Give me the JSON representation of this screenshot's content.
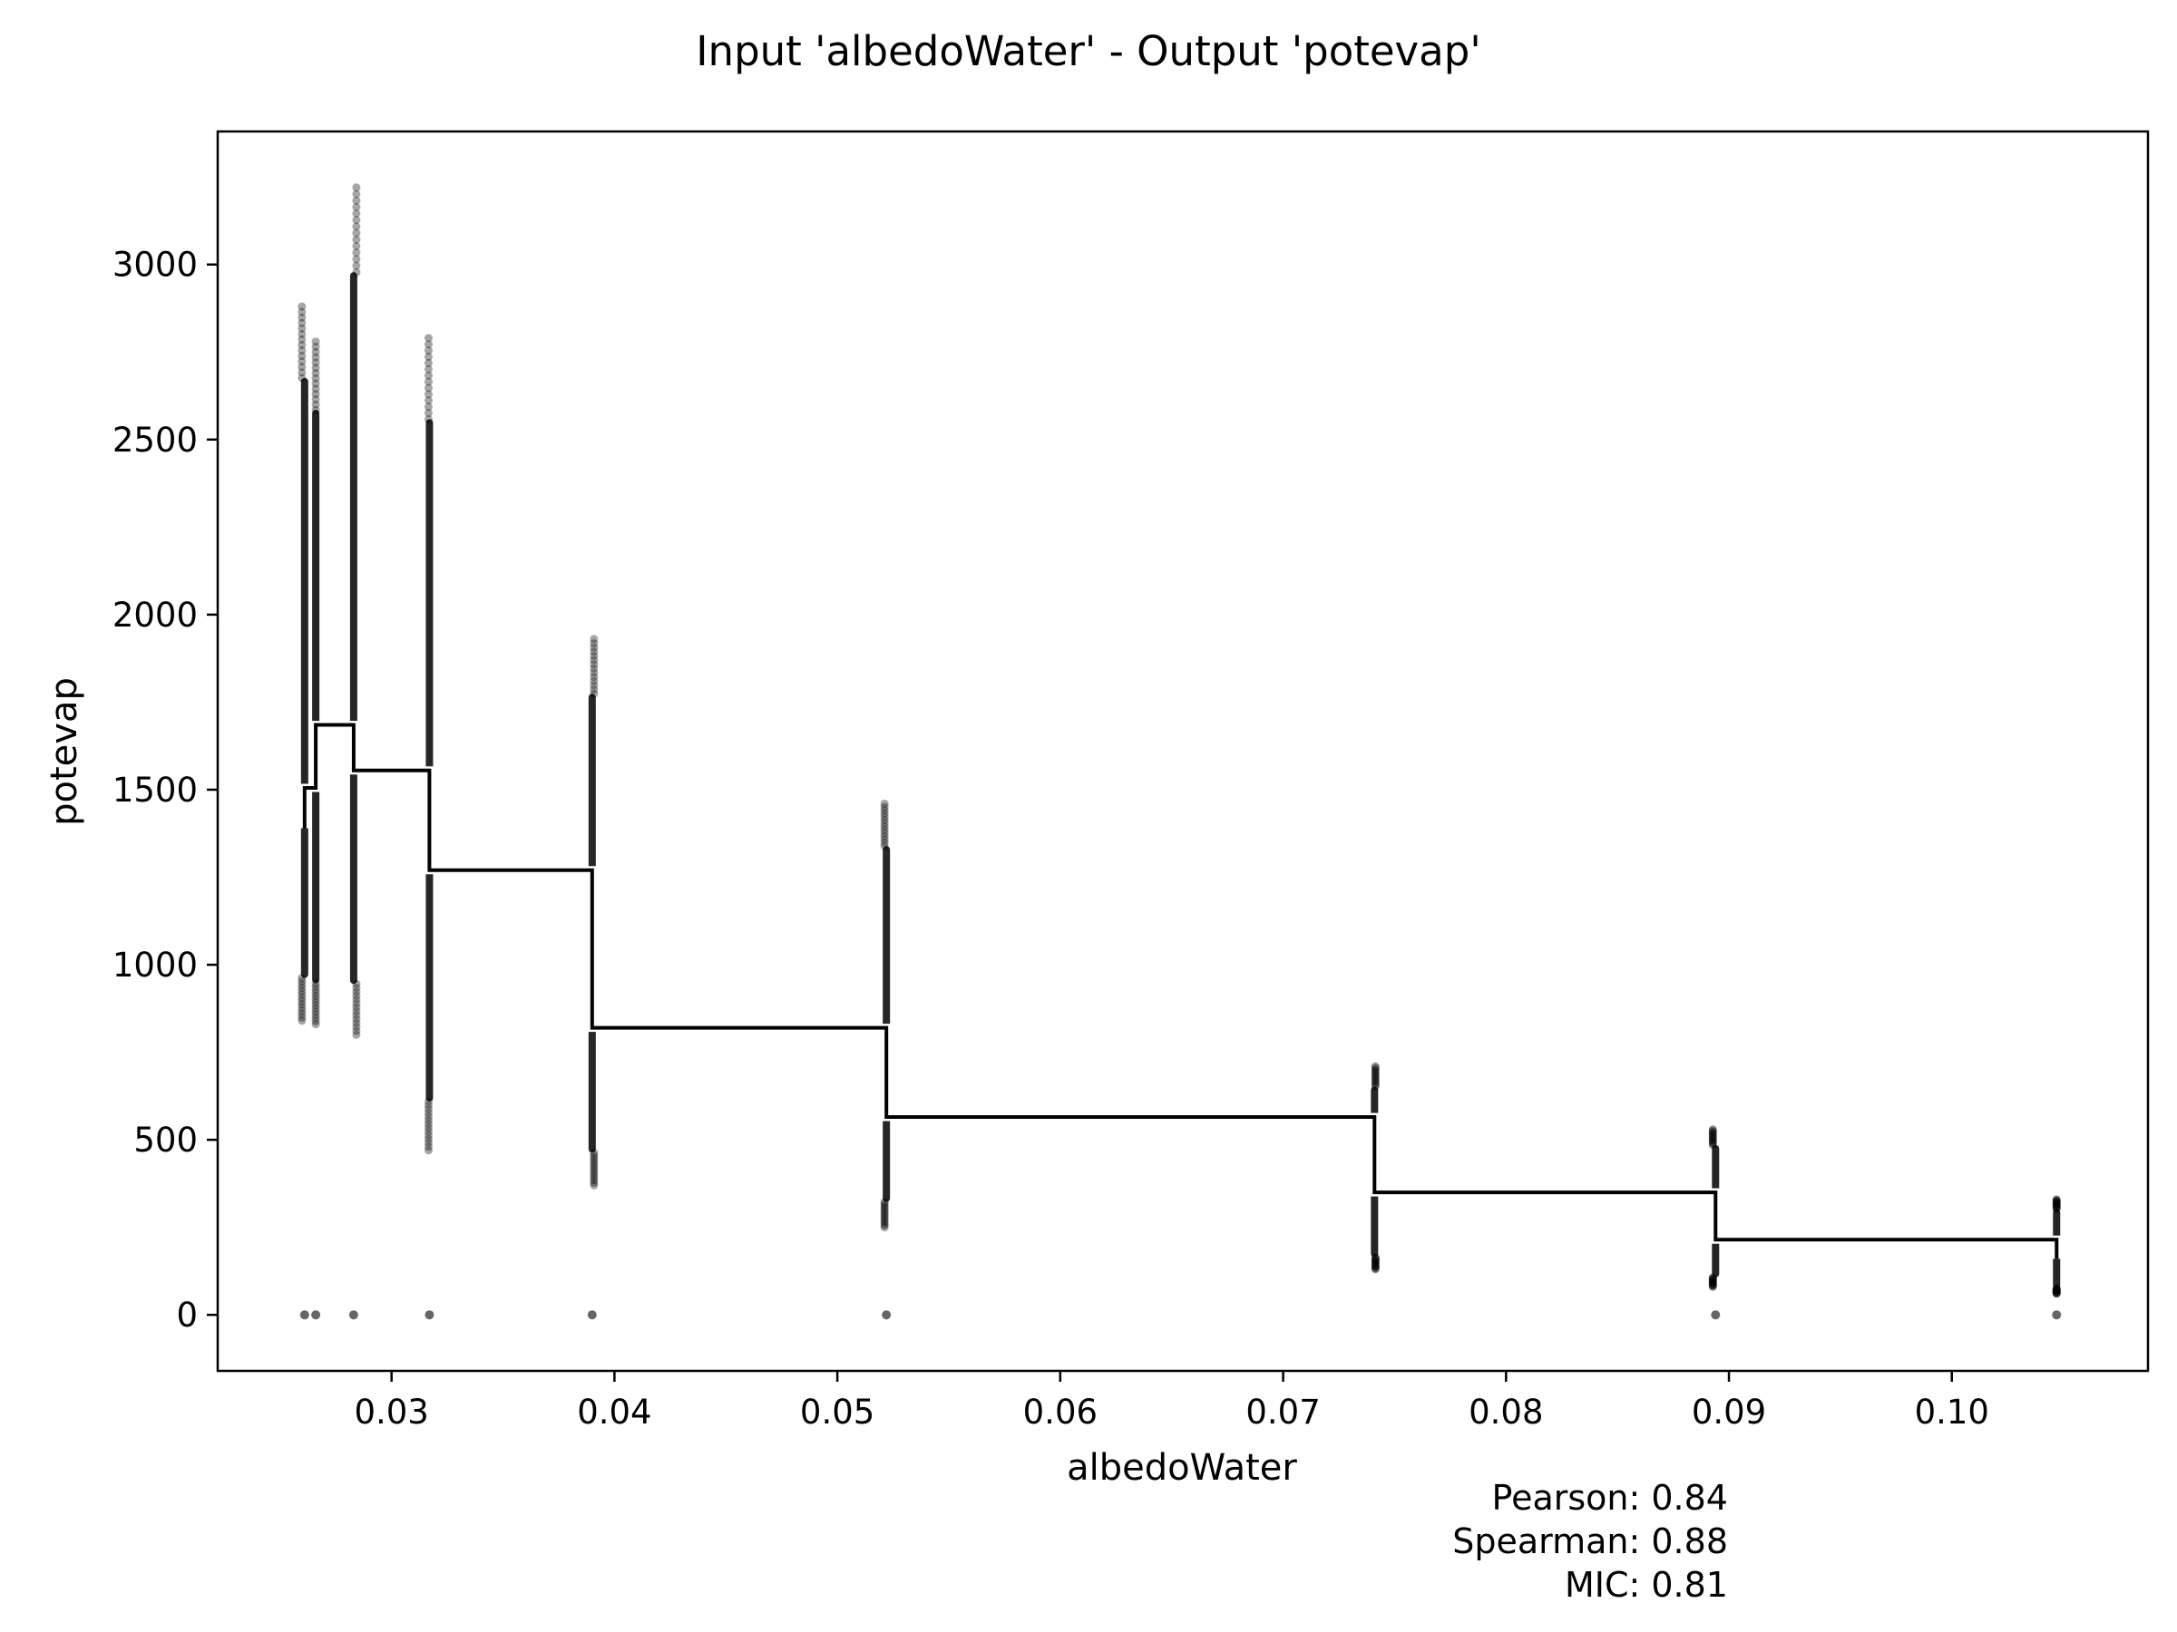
{
  "chart_data": {
    "type": "scatter",
    "title": "Input 'albedoWater' - Output 'potevap'",
    "xlabel": "albedoWater",
    "ylabel": "potevap",
    "xlim": [
      0.0222,
      0.1088
    ],
    "ylim": [
      -160,
      3380
    ],
    "xticks": [
      0.03,
      0.04,
      0.05,
      0.06,
      0.07,
      0.08,
      0.09,
      0.1
    ],
    "xtick_labels": [
      "0.03",
      "0.04",
      "0.05",
      "0.06",
      "0.07",
      "0.08",
      "0.09",
      "0.10"
    ],
    "yticks": [
      0,
      500,
      1000,
      1500,
      2000,
      2500,
      3000
    ],
    "ytick_labels": [
      "0",
      "500",
      "1000",
      "1500",
      "2000",
      "2500",
      "3000"
    ],
    "grid": false,
    "point_color": "#000000",
    "scatter_columns": [
      {
        "x": 0.0261,
        "y_min": 840,
        "y_max": 2880,
        "zero": true
      },
      {
        "x": 0.0266,
        "y_min": 830,
        "y_max": 2780,
        "zero": true
      },
      {
        "x": 0.0283,
        "y_min": 800,
        "y_max": 3220,
        "zero": true
      },
      {
        "x": 0.0317,
        "y_min": 470,
        "y_max": 2790,
        "zero": true
      },
      {
        "x": 0.039,
        "y_min": 370,
        "y_max": 1930,
        "zero": true
      },
      {
        "x": 0.0522,
        "y_min": 250,
        "y_max": 1460,
        "zero": true
      },
      {
        "x": 0.0741,
        "y_min": 130,
        "y_max": 710,
        "zero": false
      },
      {
        "x": 0.0894,
        "y_min": 80,
        "y_max": 530,
        "zero": true
      },
      {
        "x": 0.1047,
        "y_min": 60,
        "y_max": 330,
        "zero": true
      }
    ],
    "mean_line": [
      {
        "x": 0.0261,
        "y": 1390
      },
      {
        "x": 0.0261,
        "y": 1505
      },
      {
        "x": 0.0266,
        "y": 1505
      },
      {
        "x": 0.0266,
        "y": 1685
      },
      {
        "x": 0.0283,
        "y": 1685
      },
      {
        "x": 0.0283,
        "y": 1555
      },
      {
        "x": 0.0317,
        "y": 1555
      },
      {
        "x": 0.0317,
        "y": 1270
      },
      {
        "x": 0.039,
        "y": 1270
      },
      {
        "x": 0.039,
        "y": 820
      },
      {
        "x": 0.0522,
        "y": 820
      },
      {
        "x": 0.0522,
        "y": 565
      },
      {
        "x": 0.0741,
        "y": 565
      },
      {
        "x": 0.0741,
        "y": 350
      },
      {
        "x": 0.0894,
        "y": 350
      },
      {
        "x": 0.0894,
        "y": 215
      },
      {
        "x": 0.1047,
        "y": 215
      },
      {
        "x": 0.1047,
        "y": 160
      }
    ],
    "stats": {
      "pearson": "Pearson: 0.84",
      "spearman": "Spearman: 0.88",
      "mic": "MIC: 0.81"
    }
  }
}
